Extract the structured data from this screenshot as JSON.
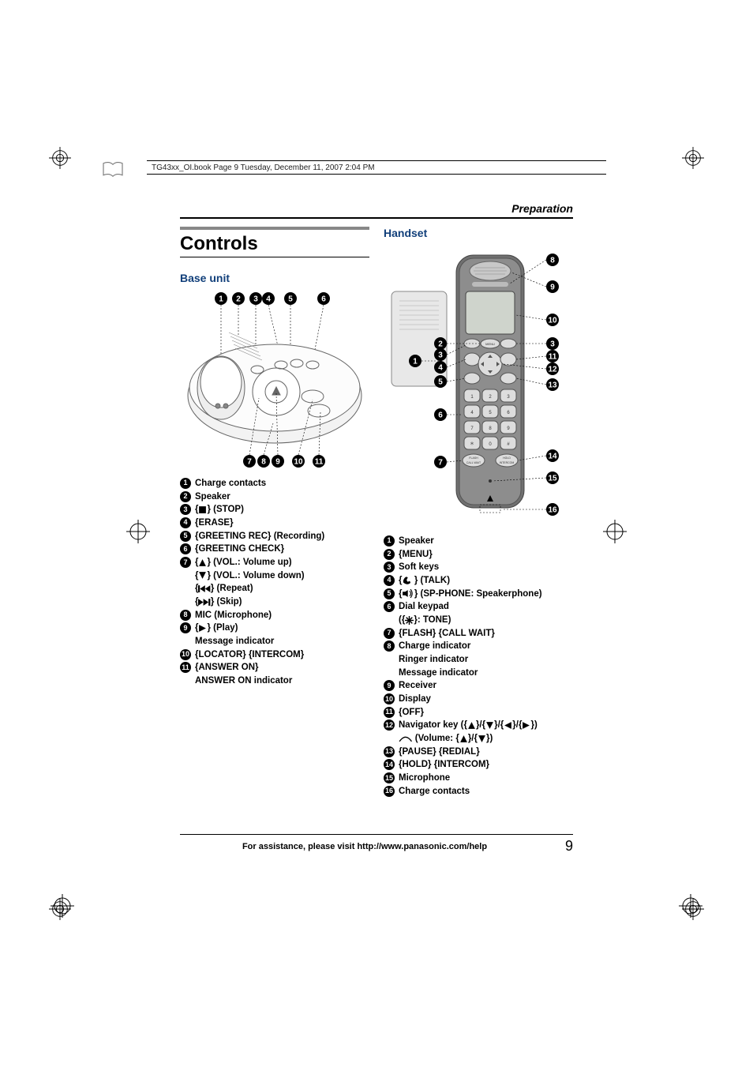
{
  "header_strip": "TG43xx_OI.book  Page 9  Tuesday, December 11, 2007  2:04 PM",
  "section": "Preparation",
  "title": "Controls",
  "base_unit": {
    "heading": "Base unit",
    "callouts_top": [
      "1",
      "2",
      "3",
      "4",
      "5",
      "6"
    ],
    "callouts_bottom": [
      "7",
      "8",
      "9",
      "10",
      "11"
    ],
    "items": [
      {
        "n": "1",
        "text": "Charge contacts"
      },
      {
        "n": "2",
        "text": "Speaker"
      },
      {
        "n": "3",
        "text": "{■} (STOP)"
      },
      {
        "n": "4",
        "text": "{ERASE}"
      },
      {
        "n": "5",
        "text": "{GREETING REC} (Recording)"
      },
      {
        "n": "6",
        "text": "{GREETING CHECK}"
      },
      {
        "n": "7",
        "text": "{▲} (VOL.: Volume up)"
      },
      {
        "n": "",
        "text": "{▼} (VOL.: Volume down)"
      },
      {
        "n": "",
        "text": "{⏮} (Repeat)"
      },
      {
        "n": "",
        "text": "{⏭} (Skip)"
      },
      {
        "n": "8",
        "text": "MIC (Microphone)"
      },
      {
        "n": "9",
        "text": "{▶} (Play)"
      },
      {
        "n": "",
        "text": "Message indicator"
      },
      {
        "n": "10",
        "text": "{LOCATOR} {INTERCOM}"
      },
      {
        "n": "11",
        "text": "{ANSWER ON}"
      },
      {
        "n": "",
        "text": "ANSWER ON indicator"
      }
    ]
  },
  "handset": {
    "heading": "Handset",
    "callouts_left": [
      "1",
      "2",
      "3",
      "4",
      "5",
      "6",
      "7"
    ],
    "callouts_right": [
      "8",
      "9",
      "10",
      "3",
      "11",
      "12",
      "13",
      "14",
      "15",
      "16"
    ],
    "items": [
      {
        "n": "1",
        "text": "Speaker"
      },
      {
        "n": "2",
        "text": "{MENU}"
      },
      {
        "n": "3",
        "text": "Soft keys"
      },
      {
        "n": "4",
        "text": "{📞} (TALK)"
      },
      {
        "n": "5",
        "text": "{🔊} (SP-PHONE: Speakerphone)"
      },
      {
        "n": "6",
        "text": "Dial keypad"
      },
      {
        "n": "",
        "text": "({＊}: TONE)"
      },
      {
        "n": "7",
        "text": "{FLASH} {CALL WAIT}"
      },
      {
        "n": "8",
        "text": "Charge indicator"
      },
      {
        "n": "",
        "text": "Ringer indicator"
      },
      {
        "n": "",
        "text": "Message indicator"
      },
      {
        "n": "9",
        "text": "Receiver"
      },
      {
        "n": "10",
        "text": "Display"
      },
      {
        "n": "11",
        "text": "{OFF}"
      },
      {
        "n": "12",
        "text": "Navigator key ({▲}/{▼}/{◀}/{▶})"
      },
      {
        "n": "",
        "text": "⌒ (Volume: {▲}/{▼})"
      },
      {
        "n": "13",
        "text": "{PAUSE} {REDIAL}"
      },
      {
        "n": "14",
        "text": "{HOLD} {INTERCOM}"
      },
      {
        "n": "15",
        "text": "Microphone"
      },
      {
        "n": "16",
        "text": "Charge contacts"
      }
    ]
  },
  "footer": {
    "text": "For assistance, please visit http://www.panasonic.com/help",
    "page": "9"
  },
  "colors": {
    "sub_heading": "#113f7a",
    "rule_grey": "#888888"
  }
}
